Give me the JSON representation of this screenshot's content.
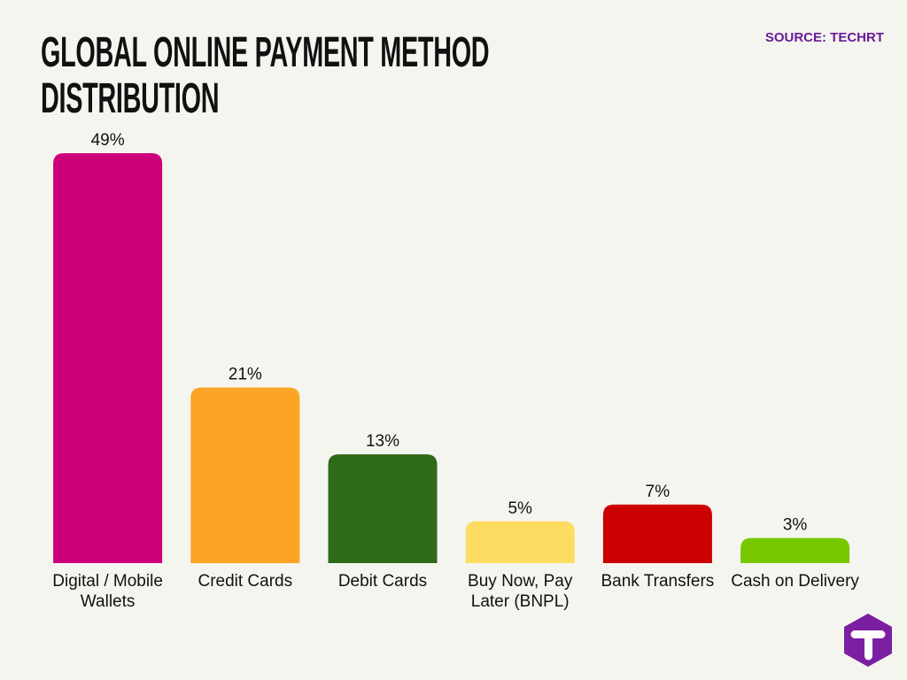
{
  "chart_data": {
    "type": "bar",
    "title": "GLOBAL ONLINE PAYMENT METHOD DISTRIBUTION",
    "source": "SOURCE: TECHRT",
    "categories": [
      "Digital / Mobile Wallets",
      "Credit Cards",
      "Debit Cards",
      "Buy Now, Pay Later (BNPL)",
      "Bank Transfers",
      "Cash on Delivery"
    ],
    "values": [
      49,
      21,
      13,
      5,
      7,
      3
    ],
    "value_labels": [
      "49%",
      "21%",
      "13%",
      "5%",
      "7%",
      "3%"
    ],
    "colors": [
      "#cc007a",
      "#fca424",
      "#2f6a1a",
      "#fedc62",
      "#cc0000",
      "#78c800"
    ]
  }
}
